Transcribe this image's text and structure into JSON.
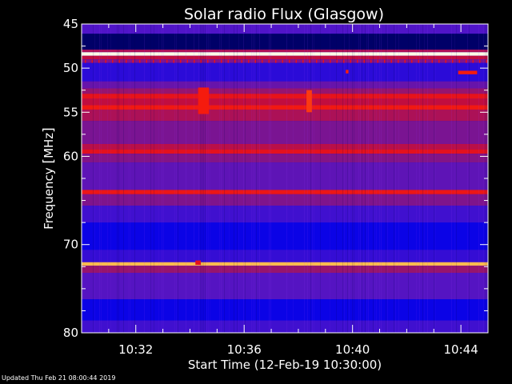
{
  "chart_data": {
    "type": "heatmap",
    "title": "Solar radio Flux (Glasgow)",
    "ylabel_prefix": "Frequency ",
    "ylabel_unit": "MHz",
    "xlabel": "Start Time (12-Feb-19 10:30:00)",
    "x_range_minutes": [
      0,
      15
    ],
    "y_range_mhz": [
      45,
      80
    ],
    "y_ticks": [
      {
        "value": 45,
        "label": "45"
      },
      {
        "value": 50,
        "label": "50"
      },
      {
        "value": 55,
        "label": "55"
      },
      {
        "value": 60,
        "label": "60"
      },
      {
        "value": 70,
        "label": "70"
      },
      {
        "value": 80,
        "label": "80"
      }
    ],
    "y_minor_ticks": [
      47.5,
      52.5,
      57.5,
      62.5,
      65,
      67.5,
      72.5,
      75,
      77.5
    ],
    "x_ticks": [
      {
        "value": 2,
        "label": "10:32"
      },
      {
        "value": 6,
        "label": "10:36"
      },
      {
        "value": 10,
        "label": "10:40"
      },
      {
        "value": 14,
        "label": "10:44"
      }
    ],
    "x_minor_ticks": [
      1,
      3,
      4,
      5,
      7,
      8,
      9,
      11,
      12,
      13
    ],
    "bands": [
      {
        "from": 45.0,
        "to": 46.1,
        "level": 0.35
      },
      {
        "from": 46.1,
        "to": 47.9,
        "level": 0.05
      },
      {
        "from": 47.9,
        "to": 48.2,
        "level": 0.55
      },
      {
        "from": 48.2,
        "to": 48.6,
        "level": 1.0
      },
      {
        "from": 48.6,
        "to": 49.0,
        "level": 0.6
      },
      {
        "from": 49.0,
        "to": 49.4,
        "level": 0.45
      },
      {
        "from": 49.4,
        "to": 51.5,
        "level": 0.28
      },
      {
        "from": 51.5,
        "to": 52.3,
        "level": 0.4
      },
      {
        "from": 52.3,
        "to": 52.9,
        "level": 0.5
      },
      {
        "from": 52.9,
        "to": 53.5,
        "level": 0.72
      },
      {
        "from": 53.5,
        "to": 54.2,
        "level": 0.6
      },
      {
        "from": 54.2,
        "to": 54.7,
        "level": 0.76
      },
      {
        "from": 54.7,
        "to": 56.0,
        "level": 0.55
      },
      {
        "from": 56.0,
        "to": 58.6,
        "level": 0.44
      },
      {
        "from": 58.6,
        "to": 59.2,
        "level": 0.58
      },
      {
        "from": 59.2,
        "to": 59.7,
        "level": 0.7
      },
      {
        "from": 59.7,
        "to": 60.7,
        "level": 0.46
      },
      {
        "from": 60.7,
        "to": 63.8,
        "level": 0.38
      },
      {
        "from": 63.8,
        "to": 64.3,
        "level": 0.74
      },
      {
        "from": 64.3,
        "to": 65.6,
        "level": 0.45
      },
      {
        "from": 65.6,
        "to": 67.5,
        "level": 0.32
      },
      {
        "from": 67.5,
        "to": 70.6,
        "level": 0.22
      },
      {
        "from": 70.6,
        "to": 72.0,
        "level": 0.3
      },
      {
        "from": 72.0,
        "to": 72.4,
        "level": 0.92
      },
      {
        "from": 72.4,
        "to": 73.2,
        "level": 0.5
      },
      {
        "from": 73.2,
        "to": 76.2,
        "level": 0.36
      },
      {
        "from": 76.2,
        "to": 78.6,
        "level": 0.22
      },
      {
        "from": 78.6,
        "to": 80.0,
        "level": 0.32
      }
    ],
    "features": [
      {
        "t_from": 4.3,
        "t_to": 4.7,
        "f_from": 52.2,
        "f_to": 55.2,
        "level": 0.78
      },
      {
        "t_from": 8.3,
        "t_to": 8.5,
        "f_from": 52.5,
        "f_to": 55.0,
        "level": 0.82
      },
      {
        "t_from": 13.9,
        "t_to": 14.6,
        "f_from": 50.3,
        "f_to": 50.7,
        "level": 0.78
      },
      {
        "t_from": 9.75,
        "t_to": 9.85,
        "f_from": 50.2,
        "f_to": 50.6,
        "level": 0.8
      },
      {
        "t_from": 4.2,
        "t_to": 4.4,
        "f_from": 71.8,
        "f_to": 72.3,
        "level": 0.7
      }
    ]
  },
  "footer": "Updated Thu Feb 21 08:00:44 2019"
}
